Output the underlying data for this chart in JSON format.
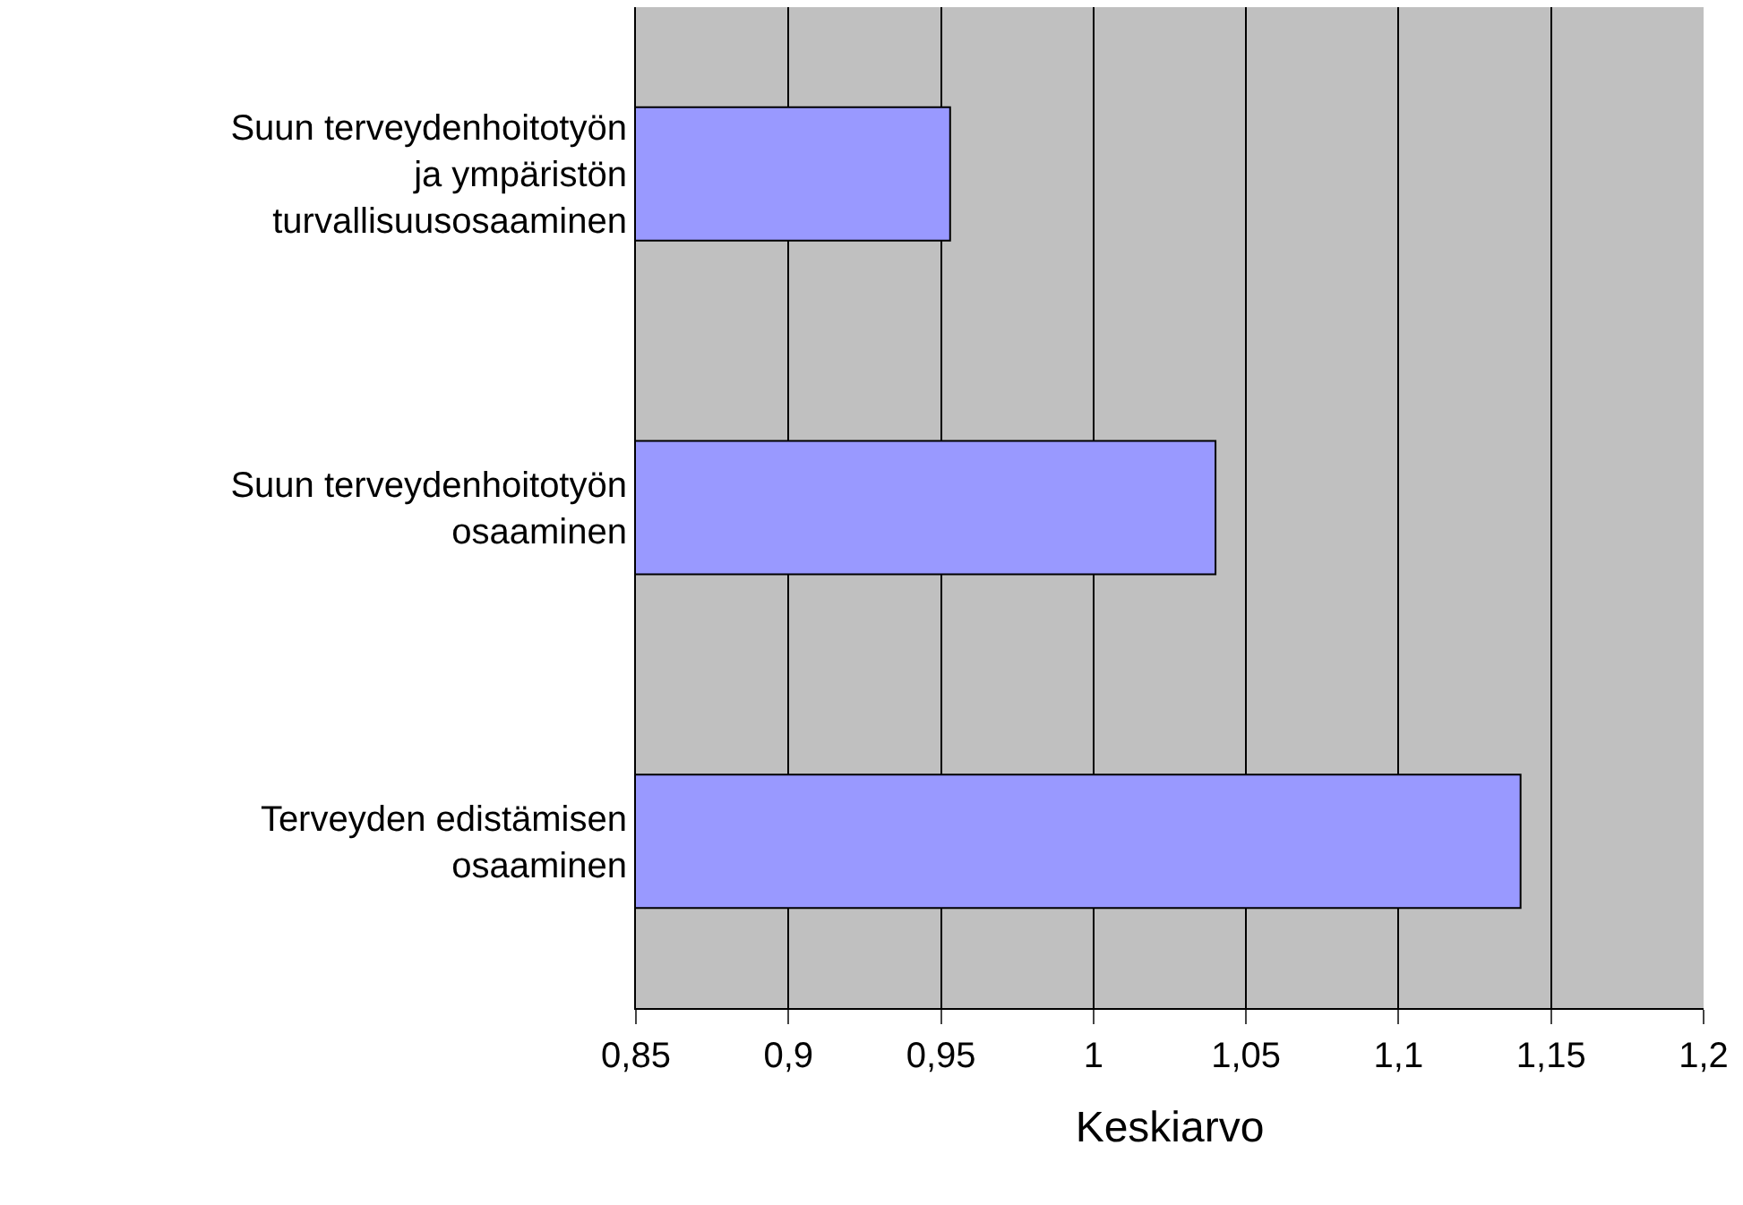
{
  "chart_data": {
    "type": "bar",
    "orientation": "horizontal",
    "categories": [
      "Suun terveydenhoitotyön\nja ympäristön\nturvallisuusosaaminen",
      "Suun terveydenhoitotyön\nosaaminen",
      "Terveyden edistämisen\nosaaminen"
    ],
    "values": [
      0.953,
      1.04,
      1.14
    ],
    "color": "#9999ff",
    "xlabel": "Keskiarvo",
    "xlim": [
      0.85,
      1.2
    ],
    "xticks": [
      {
        "value": 0.85,
        "label": "0,85"
      },
      {
        "value": 0.9,
        "label": "0,9"
      },
      {
        "value": 0.95,
        "label": "0,95"
      },
      {
        "value": 1,
        "label": "1"
      },
      {
        "value": 1.05,
        "label": "1,05"
      },
      {
        "value": 1.1,
        "label": "1,1"
      },
      {
        "value": 1.15,
        "label": "1,15"
      },
      {
        "value": 1.2,
        "label": "1,2"
      }
    ],
    "grid": "x",
    "legend": false
  }
}
